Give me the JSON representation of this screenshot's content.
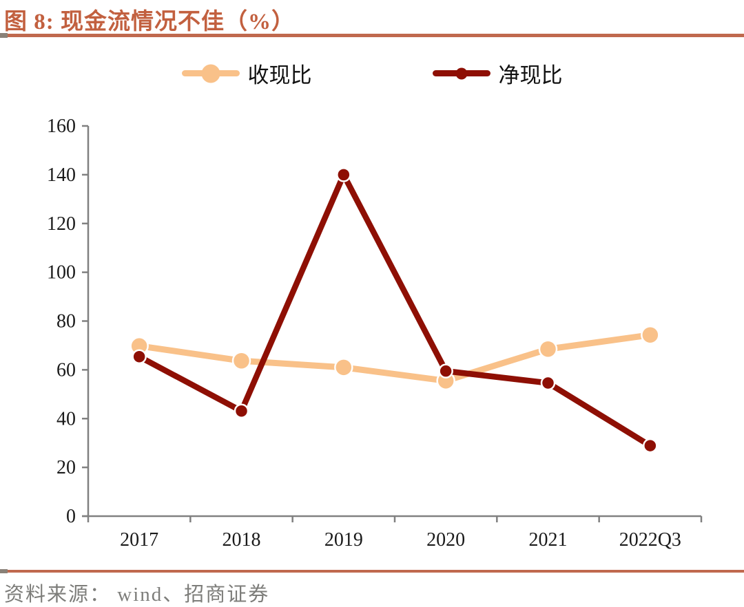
{
  "header": {
    "title": "图 8: 现金流情况不佳（%）"
  },
  "footer": {
    "source": "资料来源： wind、招商证券"
  },
  "colors": {
    "title_text": "#C2603F",
    "accent_rule": "#C0694E",
    "rule_cap": "#8A8178",
    "axis": "#808080",
    "tick_label": "#1A1A1A",
    "source_text": "#7D7D7A",
    "series_shouxianbi": "#F9C189",
    "series_jingxianbi": "#8E0F04",
    "marker_ring": "#FFFFFF"
  },
  "chart_data": {
    "type": "line",
    "title": "图 8: 现金流情况不佳（%）",
    "categories": [
      "2017",
      "2018",
      "2019",
      "2020",
      "2021",
      "2022Q3"
    ],
    "series": [
      {
        "name": "收现比",
        "color": "#F9C189",
        "values": [
          69.8,
          63.7,
          61.0,
          55.5,
          68.5,
          74.3
        ]
      },
      {
        "name": "净现比",
        "color": "#8E0F04",
        "values": [
          65.4,
          43.1,
          140.0,
          59.5,
          54.6,
          28.9
        ]
      }
    ],
    "ylabel": "",
    "xlabel": "",
    "ylim": [
      0,
      160
    ],
    "yticks": [
      0,
      20,
      40,
      60,
      80,
      100,
      120,
      140,
      160
    ],
    "grid": false,
    "legend_position": "top"
  }
}
